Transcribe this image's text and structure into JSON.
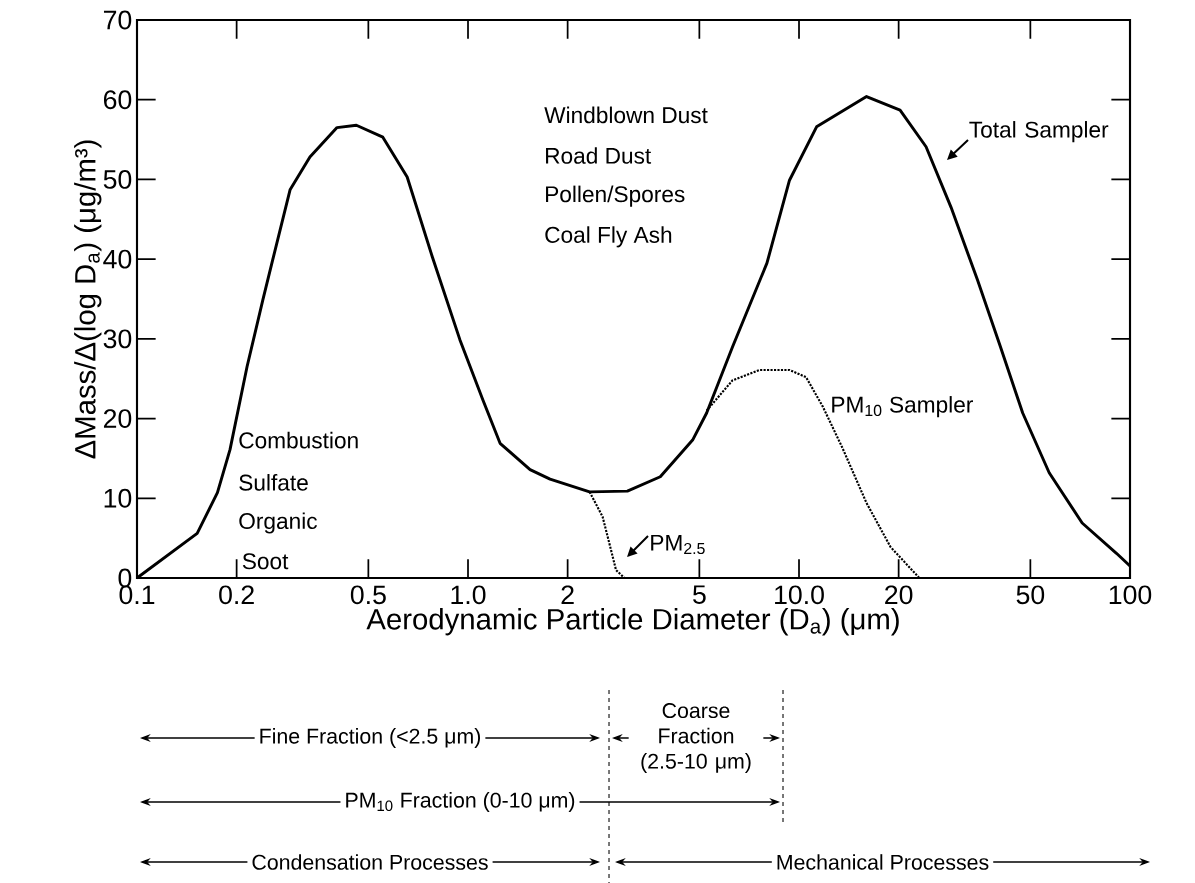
{
  "chart_data": {
    "type": "line",
    "xlabel": "Aerodynamic Particle Diameter (D$_{a}$) (μm)",
    "ylabel": "ΔMass/Δ(log D$_{a}$) (μg/m³)",
    "log": "x",
    "xlim": [
      0.1,
      100
    ],
    "ylim": [
      0,
      70
    ],
    "xticks": [
      0.1,
      0.2,
      0.5,
      {
        "value": 1,
        "label": "1.0"
      },
      2,
      5,
      {
        "value": 10,
        "label": "10.0"
      },
      20,
      50,
      100
    ],
    "yticks": [
      0,
      10,
      20,
      30,
      40,
      50,
      60,
      70
    ],
    "grid": false,
    "series": [
      {
        "name": "Total Sampler",
        "color": "#000000",
        "line_style": "solid",
        "x": [
          0.1,
          0.152,
          0.175,
          0.191,
          0.215,
          0.24,
          0.257,
          0.29,
          0.333,
          0.402,
          0.46,
          0.553,
          0.655,
          0.78,
          0.945,
          1.11,
          1.25,
          1.54,
          1.77,
          2.33,
          3.03,
          3.81,
          4.77,
          5.26,
          6.3,
          8.0,
          9.36,
          11.3,
          16.0,
          20.2,
          24.2,
          28.8,
          34.6,
          40.6,
          47.4,
          57.0,
          71.7,
          91.0,
          100
        ],
        "values": [
          0,
          5.6,
          10.7,
          16.1,
          26.5,
          34.9,
          39.9,
          48.7,
          52.8,
          56.5,
          56.8,
          55.3,
          50.3,
          40.3,
          29.9,
          22.3,
          16.9,
          13.6,
          12.4,
          10.8,
          10.9,
          12.7,
          17.3,
          20.7,
          29.0,
          39.5,
          49.9,
          56.6,
          60.4,
          58.7,
          54.1,
          46.5,
          37.4,
          29.0,
          20.7,
          13.2,
          6.9,
          3.1,
          1.5
        ]
      },
      {
        "name": "PM$_{10}$ Sampler",
        "color": "#000000",
        "line_style": "dotted",
        "x": [
          5.26,
          6.3,
          7.6,
          9.36,
          10.5,
          11.8,
          13.5,
          16.0,
          18.9,
          23.1
        ],
        "values": [
          21,
          24.8,
          26.1,
          26.1,
          25.2,
          21.5,
          16.4,
          9.4,
          3.9,
          0
        ]
      },
      {
        "name": "PM$_{2.5}$",
        "color": "#000000",
        "line_style": "dotted",
        "x": [
          2.33,
          2.55,
          2.69,
          2.8,
          2.97
        ],
        "values": [
          10.8,
          7.7,
          3.9,
          1.0,
          0
        ]
      }
    ],
    "annotations": [
      "Combustion",
      "Sulfate",
      "Organic",
      "Soot",
      "Windblown Dust",
      "Road Dust",
      "Pollen/Spores",
      "Coal Fly Ash",
      "Fine Fraction (<2.5 μm)",
      "Coarse Fraction (2.5-10 μm)",
      "PM$_{10}$ Fraction (0-10 μm)",
      "Condensation Processes",
      "Mechanical Processes"
    ]
  }
}
